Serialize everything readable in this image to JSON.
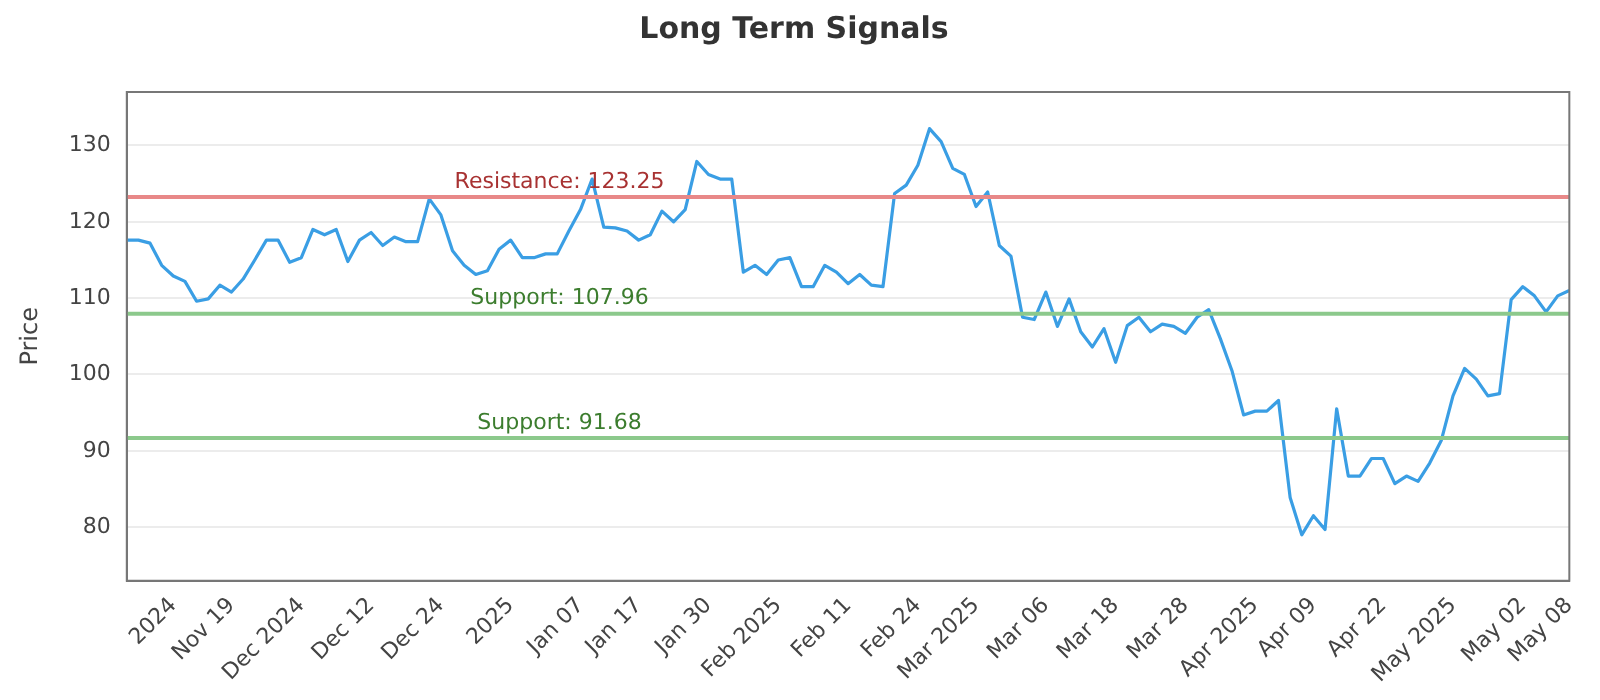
{
  "chart_data": {
    "type": "line",
    "title": "Long Term Signals",
    "ylabel": "Price",
    "categories": [
      null,
      null,
      null,
      null,
      "2024",
      null,
      null,
      null,
      null,
      "Nov 19",
      null,
      null,
      null,
      null,
      null,
      "Dec 2024",
      null,
      null,
      null,
      null,
      null,
      "Dec 12",
      null,
      null,
      null,
      null,
      null,
      "Dec 24",
      null,
      null,
      null,
      null,
      null,
      "2025",
      null,
      null,
      null,
      null,
      null,
      "Jan 07",
      null,
      null,
      null,
      null,
      "Jan 17",
      null,
      null,
      null,
      null,
      null,
      "Jan 30",
      null,
      null,
      null,
      null,
      null,
      "Feb 2025",
      null,
      null,
      null,
      null,
      null,
      "Feb 11",
      null,
      null,
      null,
      null,
      null,
      "Feb 24",
      null,
      null,
      null,
      null,
      "Mar 2025",
      null,
      null,
      null,
      null,
      null,
      "Mar 06",
      null,
      null,
      null,
      null,
      null,
      "Mar 18",
      null,
      null,
      null,
      null,
      null,
      "Mar 28",
      null,
      null,
      null,
      null,
      null,
      "Apr 2025",
      null,
      null,
      null,
      null,
      "Apr 09",
      null,
      null,
      null,
      null,
      null,
      "Apr 22",
      null,
      null,
      null,
      null,
      null,
      "May 2025",
      null,
      null,
      null,
      null,
      null,
      "May 02",
      null,
      null,
      null,
      "May 08"
    ],
    "series": [
      {
        "color": "#3a9ee4",
        "values": [
          117.6,
          117.6,
          117.2,
          114.3,
          112.9,
          112.2,
          109.6,
          109.9,
          111.7,
          110.8,
          112.5,
          115,
          117.6,
          117.6,
          114.7,
          115.3,
          119,
          118.3,
          119,
          114.8,
          117.6,
          118.6,
          116.9,
          118,
          117.4,
          117.4,
          123,
          120.9,
          116.2,
          114.3,
          113.1,
          113.6,
          116.4,
          117.6,
          115.3,
          115.3,
          115.8,
          115.8,
          118.8,
          121.6,
          125.6,
          119.3,
          119.2,
          118.8,
          117.6,
          118.3,
          121.4,
          120,
          121.6,
          127.9,
          126.2,
          125.6,
          125.6,
          113.4,
          114.3,
          113.1,
          115,
          115.3,
          111.5,
          111.5,
          114.3,
          113.4,
          111.9,
          113.1,
          111.7,
          111.5,
          123.7,
          124.8,
          127.4,
          132.2,
          130.5,
          127,
          126.2,
          122,
          123.9,
          116.9,
          115.5,
          107.5,
          107.2,
          110.8,
          106.3,
          109.9,
          105.6,
          103.6,
          106,
          101.6,
          106.4,
          107.5,
          105.6,
          106.6,
          106.3,
          105.4,
          107.5,
          108.5,
          104.7,
          100.5,
          94.7,
          95.2,
          95.2,
          96.6,
          83.9,
          79,
          81.5,
          79.7,
          95.5,
          86.7,
          86.7,
          89,
          89,
          85.7,
          86.7,
          86,
          88.4,
          91.4,
          97.2,
          100.8,
          99.4,
          97.2,
          97.5,
          109.8,
          111.5,
          110.3,
          108.2,
          110.3,
          111
        ]
      }
    ],
    "ylim": [
      73,
      137
    ],
    "yticks": [
      80,
      90,
      100,
      110,
      120,
      130
    ],
    "grid": "y",
    "legend": false,
    "marker": "none",
    "line_style": "solid",
    "ref_lines": [
      {
        "axis": "y",
        "value": 123.25,
        "label": "Resistance: 123.25",
        "color": "#e88888"
      },
      {
        "axis": "y",
        "value": 107.96,
        "label": "Support: 107.96",
        "color": "#8cc98c"
      },
      {
        "axis": "y",
        "value": 91.68,
        "label": "Support: 91.68",
        "color": "#8cc98c"
      }
    ]
  }
}
